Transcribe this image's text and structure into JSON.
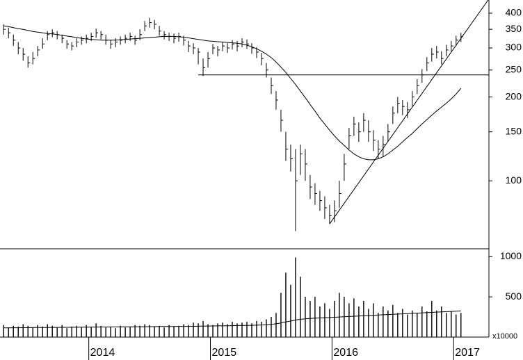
{
  "chart_data": [
    {
      "type": "hlc",
      "log_scale": true,
      "xlim": [
        2013.27,
        2017.29
      ],
      "ylim": [
        57,
        446
      ],
      "yticks": [
        100,
        150,
        200,
        250,
        300,
        350,
        400
      ],
      "x": [
        2013.3,
        2013.34,
        2013.38,
        2013.42,
        2013.46,
        2013.5,
        2013.54,
        2013.58,
        2013.62,
        2013.66,
        2013.7,
        2013.74,
        2013.78,
        2013.82,
        2013.86,
        2013.9,
        2013.94,
        2013.98,
        2014.02,
        2014.06,
        2014.1,
        2014.14,
        2014.18,
        2014.22,
        2014.26,
        2014.3,
        2014.34,
        2014.38,
        2014.42,
        2014.46,
        2014.5,
        2014.54,
        2014.58,
        2014.62,
        2014.66,
        2014.7,
        2014.74,
        2014.78,
        2014.82,
        2014.86,
        2014.9,
        2014.94,
        2014.98,
        2015.02,
        2015.06,
        2015.1,
        2015.14,
        2015.18,
        2015.22,
        2015.26,
        2015.3,
        2015.34,
        2015.38,
        2015.42,
        2015.46,
        2015.5,
        2015.54,
        2015.58,
        2015.62,
        2015.66,
        2015.7,
        2015.74,
        2015.78,
        2015.82,
        2015.86,
        2015.9,
        2015.94,
        2015.98,
        2016.02,
        2016.06,
        2016.1,
        2016.14,
        2016.18,
        2016.22,
        2016.26,
        2016.3,
        2016.34,
        2016.38,
        2016.42,
        2016.46,
        2016.5,
        2016.54,
        2016.58,
        2016.62,
        2016.66,
        2016.7,
        2016.74,
        2016.78,
        2016.82,
        2016.86,
        2016.9,
        2016.94,
        2016.98,
        2017.02,
        2017.06
      ],
      "high": [
        365,
        355,
        335,
        315,
        300,
        280,
        290,
        305,
        325,
        345,
        350,
        345,
        335,
        320,
        315,
        325,
        330,
        335,
        340,
        352,
        345,
        335,
        320,
        325,
        330,
        335,
        340,
        332,
        350,
        375,
        385,
        378,
        360,
        345,
        340,
        338,
        340,
        332,
        318,
        312,
        300,
        275,
        290,
        310,
        305,
        315,
        312,
        320,
        318,
        325,
        322,
        312,
        302,
        288,
        265,
        235,
        210,
        180,
        150,
        135,
        130,
        135,
        130,
        105,
        98,
        92,
        88,
        82,
        85,
        100,
        125,
        155,
        170,
        162,
        175,
        165,
        152,
        140,
        145,
        160,
        185,
        200,
        195,
        192,
        210,
        232,
        252,
        278,
        300,
        305,
        292,
        308,
        318,
        332,
        340
      ],
      "low": [
        335,
        325,
        305,
        285,
        270,
        255,
        262,
        280,
        298,
        320,
        328,
        322,
        312,
        298,
        294,
        302,
        308,
        312,
        318,
        326,
        322,
        308,
        298,
        302,
        308,
        312,
        318,
        308,
        320,
        345,
        355,
        350,
        332,
        322,
        318,
        312,
        316,
        306,
        290,
        285,
        262,
        238,
        255,
        285,
        280,
        292,
        288,
        296,
        292,
        302,
        298,
        286,
        276,
        260,
        235,
        205,
        180,
        150,
        118,
        108,
        66,
        105,
        100,
        86,
        82,
        78,
        73,
        70,
        71,
        80,
        100,
        130,
        145,
        138,
        150,
        138,
        128,
        120,
        122,
        138,
        160,
        175,
        172,
        168,
        185,
        205,
        225,
        248,
        268,
        275,
        262,
        280,
        292,
        305,
        315
      ],
      "close": [
        350,
        340,
        320,
        300,
        285,
        265,
        275,
        295,
        310,
        335,
        340,
        335,
        325,
        310,
        305,
        315,
        320,
        325,
        330,
        340,
        335,
        320,
        310,
        315,
        320,
        325,
        330,
        320,
        335,
        360,
        370,
        365,
        345,
        335,
        330,
        325,
        330,
        320,
        305,
        300,
        290,
        255,
        275,
        300,
        295,
        305,
        300,
        310,
        305,
        315,
        310,
        300,
        290,
        275,
        250,
        220,
        195,
        165,
        130,
        120,
        100,
        125,
        115,
        95,
        90,
        85,
        80,
        75,
        78,
        90,
        115,
        145,
        160,
        150,
        165,
        150,
        140,
        130,
        135,
        150,
        175,
        190,
        185,
        180,
        200,
        220,
        240,
        265,
        285,
        290,
        275,
        295,
        305,
        320,
        330
      ],
      "ma": [
        360,
        358,
        355,
        352,
        350,
        347,
        344,
        342,
        340,
        338,
        337,
        335,
        333,
        331,
        329,
        327,
        325,
        323,
        322,
        321,
        320,
        320,
        320,
        320,
        321,
        322,
        323,
        324,
        325,
        326,
        327,
        328,
        329,
        330,
        330,
        330,
        329,
        328,
        326,
        324,
        322,
        320,
        318,
        317,
        316,
        315,
        314,
        313,
        312,
        310,
        307,
        303,
        298,
        292,
        285,
        277,
        267,
        256,
        245,
        233,
        222,
        210,
        199,
        188,
        178,
        168,
        160,
        152,
        145,
        139,
        134,
        129,
        125,
        122,
        120,
        119,
        119,
        120,
        122,
        125,
        129,
        133,
        138,
        143,
        148,
        154,
        160,
        166,
        172,
        178,
        184,
        190,
        197,
        205,
        215
      ],
      "support_line": {
        "x": [
          2014.9,
          2017.29
        ],
        "values": [
          240,
          240
        ]
      },
      "trend_line": {
        "x": [
          2015.98,
          2017.29
        ],
        "values": [
          70,
          450
        ]
      }
    },
    {
      "type": "bar",
      "xlim": [
        2013.27,
        2017.29
      ],
      "ylim": [
        0,
        1080
      ],
      "yticks": [
        500,
        1000
      ],
      "unit_label": "x10000",
      "xticks": [
        2014,
        2015,
        2016,
        2017
      ],
      "x": [
        2013.3,
        2013.34,
        2013.38,
        2013.42,
        2013.46,
        2013.5,
        2013.54,
        2013.58,
        2013.62,
        2013.66,
        2013.7,
        2013.74,
        2013.78,
        2013.82,
        2013.86,
        2013.9,
        2013.94,
        2013.98,
        2014.02,
        2014.06,
        2014.1,
        2014.14,
        2014.18,
        2014.22,
        2014.26,
        2014.3,
        2014.34,
        2014.38,
        2014.42,
        2014.46,
        2014.5,
        2014.54,
        2014.58,
        2014.62,
        2014.66,
        2014.7,
        2014.74,
        2014.78,
        2014.82,
        2014.86,
        2014.9,
        2014.94,
        2014.98,
        2015.02,
        2015.06,
        2015.1,
        2015.14,
        2015.18,
        2015.22,
        2015.26,
        2015.3,
        2015.34,
        2015.38,
        2015.42,
        2015.46,
        2015.5,
        2015.54,
        2015.58,
        2015.62,
        2015.66,
        2015.7,
        2015.74,
        2015.78,
        2015.82,
        2015.86,
        2015.9,
        2015.94,
        2015.98,
        2016.02,
        2016.06,
        2016.1,
        2016.14,
        2016.18,
        2016.22,
        2016.26,
        2016.3,
        2016.34,
        2016.38,
        2016.42,
        2016.46,
        2016.5,
        2016.54,
        2016.58,
        2016.62,
        2016.66,
        2016.7,
        2016.74,
        2016.78,
        2016.82,
        2016.86,
        2016.9,
        2016.94,
        2016.98,
        2017.02,
        2017.06
      ],
      "values": [
        150,
        120,
        140,
        130,
        160,
        140,
        120,
        150,
        130,
        160,
        140,
        120,
        150,
        110,
        130,
        140,
        120,
        150,
        130,
        170,
        140,
        120,
        130,
        110,
        140,
        120,
        130,
        150,
        140,
        160,
        150,
        130,
        140,
        120,
        150,
        130,
        140,
        160,
        150,
        180,
        170,
        200,
        160,
        150,
        170,
        180,
        160,
        190,
        170,
        180,
        190,
        170,
        200,
        190,
        220,
        250,
        300,
        550,
        800,
        650,
        990,
        750,
        500,
        450,
        500,
        380,
        420,
        350,
        450,
        550,
        500,
        420,
        480,
        380,
        450,
        350,
        420,
        300,
        380,
        330,
        400,
        300,
        350,
        280,
        330,
        300,
        380,
        320,
        450,
        330,
        380,
        300,
        320,
        280,
        300
      ],
      "ma": [
        115,
        115,
        116,
        116,
        117,
        117,
        118,
        118,
        119,
        119,
        120,
        120,
        121,
        121,
        122,
        122,
        123,
        123,
        124,
        124,
        125,
        125,
        126,
        126,
        127,
        127,
        128,
        128,
        129,
        129,
        130,
        130,
        131,
        131,
        132,
        132,
        133,
        133,
        134,
        134,
        135,
        136,
        137,
        138,
        139,
        140,
        141,
        142,
        143,
        144,
        145,
        146,
        148,
        150,
        153,
        158,
        165,
        175,
        188,
        200,
        212,
        220,
        226,
        231,
        235,
        238,
        241,
        243,
        246,
        250,
        253,
        256,
        259,
        262,
        265,
        268,
        271,
        274,
        277,
        280,
        283,
        286,
        289,
        292,
        295,
        298,
        301,
        304,
        307,
        310,
        313,
        316,
        319,
        322,
        325
      ]
    }
  ]
}
